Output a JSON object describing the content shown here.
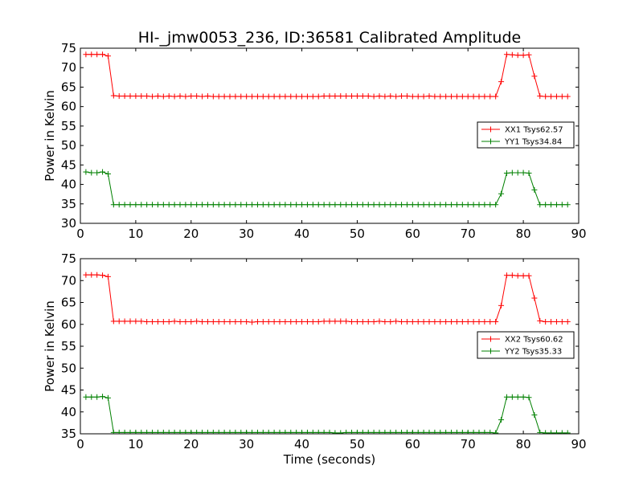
{
  "colors": {
    "xx": "#ff0000",
    "yy": "#008000"
  },
  "chart_data": [
    {
      "type": "line",
      "title": "HI-_jmw0053_236, ID:36581 Calibrated Amplitude",
      "xlabel": "",
      "ylabel": "Power in Kelvin",
      "xlim": [
        0,
        90
      ],
      "ylim": [
        30,
        75
      ],
      "xticks": [
        0,
        10,
        20,
        30,
        40,
        50,
        60,
        70,
        80,
        90
      ],
      "yticks": [
        30,
        35,
        40,
        45,
        50,
        55,
        60,
        65,
        70,
        75
      ],
      "legend": "right",
      "grid": false,
      "series": [
        {
          "name": "XX1 Tsys62.57",
          "color": "#ff0000",
          "marker": "+",
          "x": [
            1,
            2,
            3,
            4,
            5,
            6,
            7,
            8,
            9,
            10,
            11,
            12,
            13,
            14,
            15,
            16,
            17,
            18,
            19,
            20,
            21,
            22,
            23,
            24,
            25,
            26,
            27,
            28,
            29,
            30,
            31,
            32,
            33,
            34,
            35,
            36,
            37,
            38,
            39,
            40,
            41,
            42,
            43,
            44,
            45,
            46,
            47,
            48,
            49,
            50,
            51,
            52,
            53,
            54,
            55,
            56,
            57,
            58,
            59,
            60,
            61,
            62,
            63,
            64,
            65,
            66,
            67,
            68,
            69,
            70,
            71,
            72,
            73,
            74,
            75,
            76,
            77,
            78,
            79,
            80,
            81,
            82,
            83,
            84,
            85,
            86,
            87,
            88
          ],
          "y": [
            73.4,
            73.4,
            73.4,
            73.4,
            73.0,
            62.8,
            62.7,
            62.7,
            62.7,
            62.7,
            62.7,
            62.7,
            62.6,
            62.7,
            62.6,
            62.7,
            62.6,
            62.7,
            62.6,
            62.7,
            62.7,
            62.6,
            62.7,
            62.6,
            62.6,
            62.6,
            62.6,
            62.6,
            62.6,
            62.6,
            62.6,
            62.6,
            62.6,
            62.6,
            62.6,
            62.6,
            62.6,
            62.6,
            62.6,
            62.6,
            62.6,
            62.6,
            62.6,
            62.7,
            62.7,
            62.7,
            62.7,
            62.7,
            62.7,
            62.7,
            62.7,
            62.7,
            62.6,
            62.7,
            62.6,
            62.7,
            62.6,
            62.7,
            62.7,
            62.6,
            62.6,
            62.6,
            62.7,
            62.6,
            62.6,
            62.6,
            62.6,
            62.6,
            62.6,
            62.6,
            62.6,
            62.6,
            62.6,
            62.6,
            62.6,
            66.4,
            73.4,
            73.3,
            73.2,
            73.2,
            73.3,
            67.8,
            62.7,
            62.6,
            62.6,
            62.6,
            62.6,
            62.6
          ]
        },
        {
          "name": "YY1 Tsys34.84",
          "color": "#008000",
          "marker": "+",
          "x": [
            1,
            2,
            3,
            4,
            5,
            6,
            7,
            8,
            9,
            10,
            11,
            12,
            13,
            14,
            15,
            16,
            17,
            18,
            19,
            20,
            21,
            22,
            23,
            24,
            25,
            26,
            27,
            28,
            29,
            30,
            31,
            32,
            33,
            34,
            35,
            36,
            37,
            38,
            39,
            40,
            41,
            42,
            43,
            44,
            45,
            46,
            47,
            48,
            49,
            50,
            51,
            52,
            53,
            54,
            55,
            56,
            57,
            58,
            59,
            60,
            61,
            62,
            63,
            64,
            65,
            66,
            67,
            68,
            69,
            70,
            71,
            72,
            73,
            74,
            75,
            76,
            77,
            78,
            79,
            80,
            81,
            82,
            83,
            84,
            85,
            86,
            87,
            88
          ],
          "y": [
            43.2,
            43.0,
            43.0,
            43.2,
            42.7,
            34.8,
            34.8,
            34.8,
            34.8,
            34.8,
            34.8,
            34.8,
            34.8,
            34.8,
            34.8,
            34.8,
            34.8,
            34.8,
            34.8,
            34.8,
            34.8,
            34.8,
            34.8,
            34.8,
            34.8,
            34.8,
            34.8,
            34.8,
            34.8,
            34.8,
            34.8,
            34.8,
            34.8,
            34.8,
            34.8,
            34.8,
            34.8,
            34.8,
            34.8,
            34.8,
            34.8,
            34.8,
            34.8,
            34.8,
            34.8,
            34.8,
            34.8,
            34.8,
            34.8,
            34.8,
            34.8,
            34.8,
            34.8,
            34.8,
            34.8,
            34.8,
            34.8,
            34.8,
            34.8,
            34.8,
            34.8,
            34.8,
            34.8,
            34.8,
            34.8,
            34.8,
            34.8,
            34.8,
            34.8,
            34.8,
            34.8,
            34.8,
            34.8,
            34.8,
            34.8,
            37.6,
            42.9,
            43.0,
            43.0,
            43.0,
            42.9,
            38.6,
            34.8,
            34.8,
            34.8,
            34.8,
            34.8,
            34.8
          ]
        }
      ]
    },
    {
      "type": "line",
      "title": "",
      "xlabel": "Time (seconds)",
      "ylabel": "Power in Kelvin",
      "xlim": [
        0,
        90
      ],
      "ylim": [
        35,
        75
      ],
      "xticks": [
        0,
        10,
        20,
        30,
        40,
        50,
        60,
        70,
        80,
        90
      ],
      "yticks": [
        35,
        40,
        45,
        50,
        55,
        60,
        65,
        70,
        75
      ],
      "legend": "right",
      "grid": false,
      "series": [
        {
          "name": "XX2 Tsys60.62",
          "color": "#ff0000",
          "marker": "+",
          "x": [
            1,
            2,
            3,
            4,
            5,
            6,
            7,
            8,
            9,
            10,
            11,
            12,
            13,
            14,
            15,
            16,
            17,
            18,
            19,
            20,
            21,
            22,
            23,
            24,
            25,
            26,
            27,
            28,
            29,
            30,
            31,
            32,
            33,
            34,
            35,
            36,
            37,
            38,
            39,
            40,
            41,
            42,
            43,
            44,
            45,
            46,
            47,
            48,
            49,
            50,
            51,
            52,
            53,
            54,
            55,
            56,
            57,
            58,
            59,
            60,
            61,
            62,
            63,
            64,
            65,
            66,
            67,
            68,
            69,
            70,
            71,
            72,
            73,
            74,
            75,
            76,
            77,
            78,
            79,
            80,
            81,
            82,
            83,
            84,
            85,
            86,
            87,
            88
          ],
          "y": [
            71.3,
            71.3,
            71.3,
            71.2,
            70.9,
            60.7,
            60.7,
            60.7,
            60.7,
            60.7,
            60.7,
            60.6,
            60.6,
            60.6,
            60.6,
            60.6,
            60.7,
            60.6,
            60.6,
            60.6,
            60.7,
            60.6,
            60.6,
            60.6,
            60.6,
            60.6,
            60.6,
            60.6,
            60.6,
            60.6,
            60.5,
            60.6,
            60.6,
            60.6,
            60.6,
            60.6,
            60.6,
            60.6,
            60.6,
            60.6,
            60.6,
            60.6,
            60.6,
            60.7,
            60.7,
            60.7,
            60.7,
            60.7,
            60.6,
            60.6,
            60.6,
            60.6,
            60.6,
            60.7,
            60.6,
            60.6,
            60.7,
            60.6,
            60.6,
            60.6,
            60.6,
            60.6,
            60.6,
            60.6,
            60.6,
            60.6,
            60.6,
            60.6,
            60.6,
            60.6,
            60.6,
            60.6,
            60.6,
            60.6,
            60.6,
            64.3,
            71.2,
            71.2,
            71.1,
            71.1,
            71.1,
            66.0,
            60.8,
            60.6,
            60.6,
            60.6,
            60.6,
            60.6
          ]
        },
        {
          "name": "YY2 Tsys35.33",
          "color": "#008000",
          "marker": "+",
          "x": [
            1,
            2,
            3,
            4,
            5,
            6,
            7,
            8,
            9,
            10,
            11,
            12,
            13,
            14,
            15,
            16,
            17,
            18,
            19,
            20,
            21,
            22,
            23,
            24,
            25,
            26,
            27,
            28,
            29,
            30,
            31,
            32,
            33,
            34,
            35,
            36,
            37,
            38,
            39,
            40,
            41,
            42,
            43,
            44,
            45,
            46,
            47,
            48,
            49,
            50,
            51,
            52,
            53,
            54,
            55,
            56,
            57,
            58,
            59,
            60,
            61,
            62,
            63,
            64,
            65,
            66,
            67,
            68,
            69,
            70,
            71,
            72,
            73,
            74,
            75,
            76,
            77,
            78,
            79,
            80,
            81,
            82,
            83,
            84,
            85,
            86,
            87,
            88
          ],
          "y": [
            43.4,
            43.4,
            43.4,
            43.5,
            43.2,
            35.3,
            35.3,
            35.3,
            35.3,
            35.3,
            35.3,
            35.3,
            35.3,
            35.3,
            35.3,
            35.3,
            35.3,
            35.3,
            35.3,
            35.3,
            35.3,
            35.3,
            35.3,
            35.3,
            35.3,
            35.3,
            35.3,
            35.3,
            35.3,
            35.3,
            35.3,
            35.3,
            35.3,
            35.3,
            35.3,
            35.3,
            35.3,
            35.3,
            35.3,
            35.3,
            35.3,
            35.3,
            35.3,
            35.3,
            35.3,
            35.2,
            35.2,
            35.3,
            35.3,
            35.3,
            35.3,
            35.3,
            35.3,
            35.3,
            35.3,
            35.3,
            35.3,
            35.3,
            35.3,
            35.3,
            35.3,
            35.3,
            35.3,
            35.3,
            35.3,
            35.3,
            35.3,
            35.3,
            35.3,
            35.3,
            35.3,
            35.3,
            35.3,
            35.3,
            35.2,
            38.2,
            43.4,
            43.4,
            43.4,
            43.4,
            43.3,
            39.3,
            35.3,
            35.2,
            35.2,
            35.2,
            35.2,
            35.2
          ]
        }
      ]
    }
  ]
}
